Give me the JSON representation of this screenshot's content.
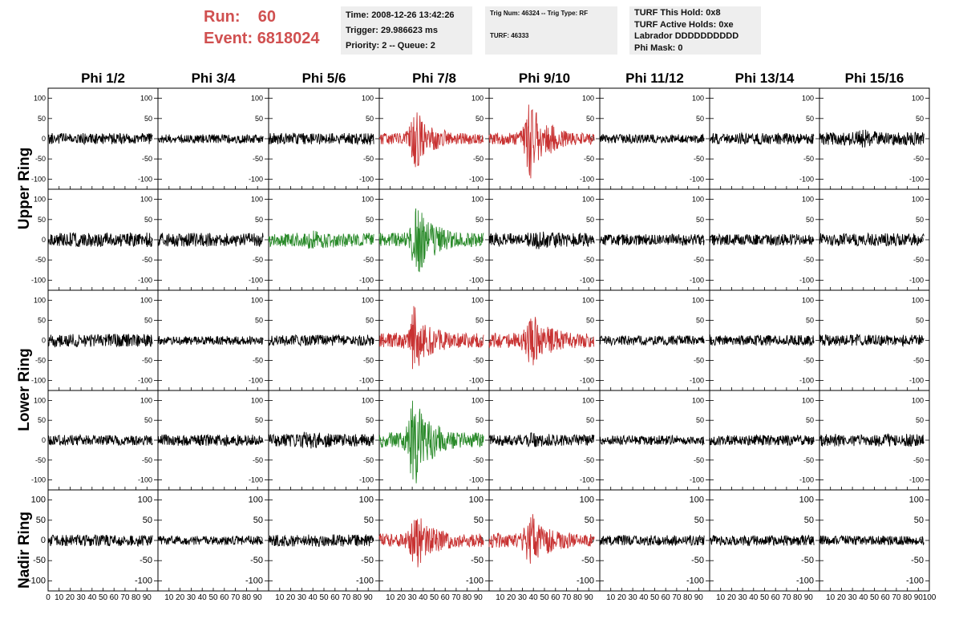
{
  "header": {
    "run_label": "Run:",
    "run_value": "60",
    "event_label": "Event:",
    "event_value": "6818024"
  },
  "info1": {
    "time": "Time: 2008-12-26 13:42:26",
    "trigger": "Trigger: 29.986623 ms",
    "priority": "Priority: 2 -- Queue: 2"
  },
  "info2": {
    "trig": "Trig Num: 46324 -- Trig Type: RF",
    "turf": "TURF: 46333"
  },
  "info3": {
    "hold": "TURF This Hold: 0x8",
    "active": "TURF Active Holds: 0xe",
    "labrador": "Labrador DDDDDDDDDD",
    "phimask": "Phi Mask: 0"
  },
  "colors": {
    "normal": "#000000",
    "triggered": "#c83232",
    "lower_triggered": "#2a8a2a"
  },
  "ring_labels": [
    {
      "text": "Upper Ring"
    },
    {
      "text": "Lower Ring"
    },
    {
      "text": "Nadir Ring"
    }
  ],
  "chart_data": {
    "type": "line",
    "columns": [
      "Phi 1/2",
      "Phi 3/4",
      "Phi 5/6",
      "Phi 7/8",
      "Phi 9/10",
      "Phi 11/12",
      "Phi 13/14",
      "Phi 15/16"
    ],
    "rows": [
      "Upper Ring",
      "Upper Ring",
      "Lower Ring",
      "Lower Ring",
      "Nadir Ring"
    ],
    "xlim": [
      0,
      100
    ],
    "ylim": [
      -125,
      125
    ],
    "yticks": [
      "100",
      "50",
      "0",
      "-50",
      "-100"
    ],
    "xticks": [
      "0",
      "10",
      "20",
      "30",
      "40",
      "50",
      "60",
      "70",
      "80",
      "90",
      "100"
    ],
    "trace_span": [
      0,
      95
    ],
    "panels": [
      [
        {
          "color": "normal",
          "amp": 14,
          "burst": 0,
          "center": 35,
          "seed": 11
        },
        {
          "color": "normal",
          "amp": 11,
          "burst": 0,
          "center": 35,
          "seed": 12
        },
        {
          "color": "normal",
          "amp": 14,
          "burst": 0,
          "center": 35,
          "seed": 13
        },
        {
          "color": "triggered",
          "amp": 14,
          "burst": 55,
          "center": 34,
          "seed": 14
        },
        {
          "color": "triggered",
          "amp": 15,
          "burst": 75,
          "center": 38,
          "seed": 15
        },
        {
          "color": "normal",
          "amp": 11,
          "burst": 0,
          "center": 35,
          "seed": 16
        },
        {
          "color": "normal",
          "amp": 14,
          "burst": 0,
          "center": 35,
          "seed": 17
        },
        {
          "color": "normal",
          "amp": 16,
          "burst": 6,
          "center": 40,
          "seed": 18
        }
      ],
      [
        {
          "color": "normal",
          "amp": 18,
          "burst": 0,
          "center": 35,
          "seed": 21
        },
        {
          "color": "normal",
          "amp": 17,
          "burst": 0,
          "center": 35,
          "seed": 22
        },
        {
          "color": "lower_triggered",
          "amp": 17,
          "burst": 8,
          "center": 40,
          "seed": 23
        },
        {
          "color": "lower_triggered",
          "amp": 17,
          "burst": 70,
          "center": 35,
          "seed": 24
        },
        {
          "color": "normal",
          "amp": 17,
          "burst": 6,
          "center": 45,
          "seed": 25
        },
        {
          "color": "normal",
          "amp": 14,
          "burst": 0,
          "center": 35,
          "seed": 26
        },
        {
          "color": "normal",
          "amp": 14,
          "burst": 0,
          "center": 35,
          "seed": 27
        },
        {
          "color": "normal",
          "amp": 16,
          "burst": 0,
          "center": 35,
          "seed": 28
        }
      ],
      [
        {
          "color": "normal",
          "amp": 16,
          "burst": 0,
          "center": 35,
          "seed": 31
        },
        {
          "color": "normal",
          "amp": 11,
          "burst": 0,
          "center": 35,
          "seed": 32
        },
        {
          "color": "normal",
          "amp": 14,
          "burst": 0,
          "center": 35,
          "seed": 33
        },
        {
          "color": "triggered",
          "amp": 18,
          "burst": 60,
          "center": 32,
          "seed": 34
        },
        {
          "color": "triggered",
          "amp": 19,
          "burst": 45,
          "center": 38,
          "seed": 35
        },
        {
          "color": "normal",
          "amp": 12,
          "burst": 0,
          "center": 35,
          "seed": 36
        },
        {
          "color": "normal",
          "amp": 13,
          "burst": 0,
          "center": 35,
          "seed": 37
        },
        {
          "color": "normal",
          "amp": 14,
          "burst": 0,
          "center": 35,
          "seed": 38
        }
      ],
      [
        {
          "color": "normal",
          "amp": 13,
          "burst": 0,
          "center": 35,
          "seed": 41
        },
        {
          "color": "normal",
          "amp": 14,
          "burst": 0,
          "center": 35,
          "seed": 42
        },
        {
          "color": "normal",
          "amp": 16,
          "burst": 6,
          "center": 35,
          "seed": 43
        },
        {
          "color": "lower_triggered",
          "amp": 20,
          "burst": 85,
          "center": 32,
          "seed": 44
        },
        {
          "color": "normal",
          "amp": 14,
          "burst": 5,
          "center": 40,
          "seed": 45
        },
        {
          "color": "normal",
          "amp": 12,
          "burst": 0,
          "center": 35,
          "seed": 46
        },
        {
          "color": "normal",
          "amp": 13,
          "burst": 0,
          "center": 35,
          "seed": 47
        },
        {
          "color": "normal",
          "amp": 16,
          "burst": 0,
          "center": 35,
          "seed": 48
        }
      ],
      [
        {
          "color": "normal",
          "amp": 14,
          "burst": 0,
          "center": 35,
          "seed": 51
        },
        {
          "color": "normal",
          "amp": 11,
          "burst": 0,
          "center": 35,
          "seed": 52
        },
        {
          "color": "normal",
          "amp": 15,
          "burst": 0,
          "center": 35,
          "seed": 53
        },
        {
          "color": "triggered",
          "amp": 17,
          "burst": 50,
          "center": 34,
          "seed": 54
        },
        {
          "color": "triggered",
          "amp": 18,
          "burst": 45,
          "center": 38,
          "seed": 55
        },
        {
          "color": "normal",
          "amp": 13,
          "burst": 0,
          "center": 35,
          "seed": 56
        },
        {
          "color": "normal",
          "amp": 13,
          "burst": 0,
          "center": 35,
          "seed": 57
        },
        {
          "color": "normal",
          "amp": 12,
          "burst": 0,
          "center": 35,
          "seed": 58
        }
      ]
    ]
  }
}
